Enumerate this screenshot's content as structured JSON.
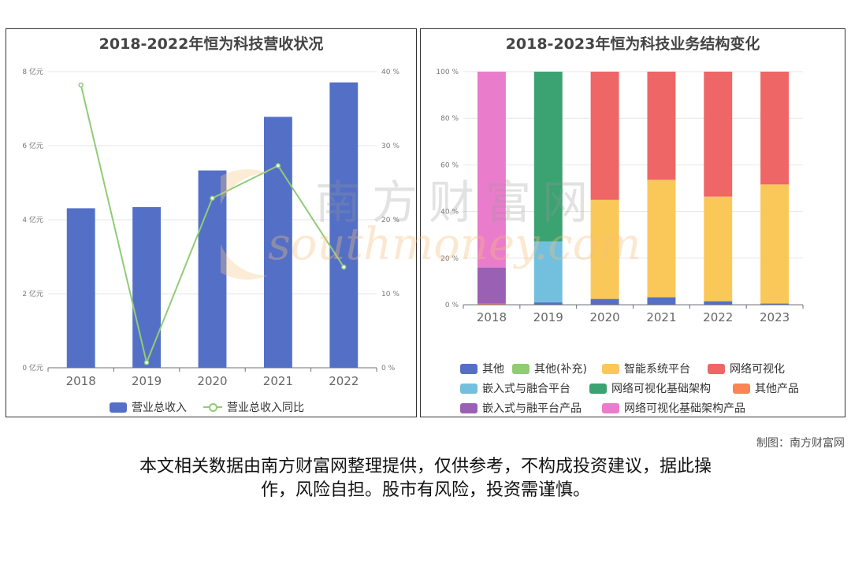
{
  "left_chart": {
    "title": "2018-2022年恒为科技营收状况",
    "legend": [
      {
        "label": "营业总收入",
        "color": "#5470c6",
        "kind": "bar"
      },
      {
        "label": "营业总收入同比",
        "color": "#91cc75",
        "kind": "line"
      }
    ]
  },
  "right_chart": {
    "title": "2018-2023年恒为科技业务结构变化",
    "legend": [
      {
        "label": "其他",
        "color": "#5470c6"
      },
      {
        "label": "其他(补充)",
        "color": "#91cc75"
      },
      {
        "label": "智能系统平台",
        "color": "#fac858"
      },
      {
        "label": "网络可视化",
        "color": "#ee6666"
      },
      {
        "label": "嵌入式与融合平台",
        "color": "#73c0de"
      },
      {
        "label": "网络可视化基础架构",
        "color": "#3ba272"
      },
      {
        "label": "其他产品",
        "color": "#fc8452"
      },
      {
        "label": "嵌入式与融平台产品",
        "color": "#9a60b4"
      },
      {
        "label": "网络可视化基础架构产品",
        "color": "#ea7ccc"
      }
    ]
  },
  "credit": "制图：南方财富网",
  "disclaimer_line1": "本文相关数据由南方财富网整理提供，仅供参考，不构成投资建议，据此操",
  "disclaimer_line2": "作，风险自担。股市有风险，投资需谨慎。",
  "watermark": {
    "line1": "南方财富网",
    "line2": "southmoney.com"
  },
  "chart_data": [
    {
      "type": "bar",
      "title": "2018-2022年恒为科技营收状况",
      "categories": [
        "2018",
        "2019",
        "2020",
        "2021",
        "2022"
      ],
      "y_left": {
        "ticks": [
          "0 亿元",
          "2 亿元",
          "4 亿元",
          "6 亿元",
          "8 亿元"
        ],
        "min": 0,
        "max": 8
      },
      "y_right": {
        "ticks": [
          "0 %",
          "10 %",
          "20 %",
          "30 %",
          "40 %"
        ],
        "min": 0,
        "max": 40
      },
      "series": [
        {
          "name": "营业总收入",
          "type": "bar",
          "axis": "left",
          "values": [
            4.31,
            4.34,
            5.33,
            6.78,
            7.71
          ]
        },
        {
          "name": "营业总收入同比",
          "type": "line",
          "axis": "right",
          "values": [
            38.2,
            0.7,
            22.9,
            27.3,
            13.6
          ]
        }
      ],
      "legend_position": "bottom"
    },
    {
      "type": "bar",
      "stacked": true,
      "title": "2018-2023年恒为科技业务结构变化",
      "categories": [
        "2018",
        "2019",
        "2020",
        "2021",
        "2022",
        "2023"
      ],
      "y": {
        "ticks": [
          "0 %",
          "20 %",
          "40 %",
          "60 %",
          "80 %",
          "100 %"
        ],
        "min": 0,
        "max": 100
      },
      "series": [
        {
          "name": "其他",
          "values": [
            0,
            1,
            2.5,
            3.2,
            1.5,
            0.5
          ]
        },
        {
          "name": "其他(补充)",
          "values": [
            0,
            0,
            0,
            0,
            0,
            0
          ]
        },
        {
          "name": "智能系统平台",
          "values": [
            0,
            0,
            42.5,
            50.4,
            44.9,
            51.1
          ]
        },
        {
          "name": "网络可视化",
          "values": [
            0,
            0,
            55,
            46.4,
            53.6,
            48.4
          ]
        },
        {
          "name": "嵌入式与融合平台",
          "values": [
            0,
            26.2,
            0,
            0,
            0,
            0
          ]
        },
        {
          "name": "网络可视化基础架构",
          "values": [
            0,
            72.8,
            0,
            0,
            0,
            0
          ]
        },
        {
          "name": "其他产品",
          "values": [
            0.5,
            0,
            0,
            0,
            0,
            0
          ]
        },
        {
          "name": "嵌入式与融平台产品",
          "values": [
            15.5,
            0,
            0,
            0,
            0,
            0
          ]
        },
        {
          "name": "网络可视化基础架构产品",
          "values": [
            84,
            0,
            0,
            0,
            0,
            0
          ]
        }
      ],
      "legend_position": "bottom"
    }
  ]
}
